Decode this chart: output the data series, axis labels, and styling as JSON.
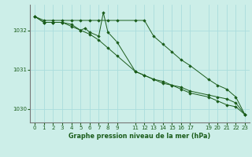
{
  "title": "Graphe pression niveau de la mer (hPa)",
  "bg_color": "#cceee8",
  "grid_color": "#aadddd",
  "line_color": "#1a5c1a",
  "marker_color": "#1a5c1a",
  "x_ticks": [
    0,
    1,
    2,
    3,
    4,
    5,
    6,
    7,
    8,
    9,
    11,
    12,
    13,
    14,
    15,
    16,
    17,
    19,
    20,
    21,
    22,
    23
  ],
  "xlim": [
    -0.5,
    23.5
  ],
  "ylim": [
    1029.65,
    1032.65
  ],
  "yticks": [
    1030,
    1031,
    1032
  ],
  "series1": {
    "x": [
      0,
      1,
      2,
      3,
      4,
      5,
      6,
      7,
      8,
      9,
      11,
      12,
      13,
      14,
      15,
      16,
      17,
      19,
      20,
      21,
      22,
      23
    ],
    "y": [
      1032.35,
      1032.25,
      1032.25,
      1032.25,
      1032.25,
      1032.25,
      1032.25,
      1032.25,
      1032.25,
      1032.25,
      1032.25,
      1032.25,
      1031.85,
      1031.65,
      1031.45,
      1031.25,
      1031.1,
      1030.75,
      1030.6,
      1030.5,
      1030.3,
      1029.85
    ]
  },
  "series2": {
    "x": [
      0,
      1,
      2,
      3,
      4,
      5,
      5.5,
      6,
      7,
      7.5,
      8,
      9,
      11,
      12,
      13,
      14,
      15,
      16,
      17,
      19,
      20,
      21,
      22,
      23
    ],
    "y": [
      1032.35,
      1032.2,
      1032.2,
      1032.2,
      1032.15,
      1032.0,
      1032.05,
      1031.95,
      1031.85,
      1032.45,
      1031.95,
      1031.7,
      1030.95,
      1030.85,
      1030.75,
      1030.7,
      1030.6,
      1030.5,
      1030.4,
      1030.3,
      1030.2,
      1030.1,
      1030.05,
      1029.85
    ]
  },
  "series3": {
    "x": [
      0,
      1,
      2,
      3,
      4,
      5,
      6,
      7,
      8,
      9,
      11,
      12,
      13,
      14,
      15,
      16,
      17,
      19,
      20,
      21,
      22,
      23
    ],
    "y": [
      1032.35,
      1032.2,
      1032.2,
      1032.2,
      1032.1,
      1032.0,
      1031.9,
      1031.75,
      1031.55,
      1031.35,
      1030.95,
      1030.85,
      1030.75,
      1030.65,
      1030.6,
      1030.55,
      1030.45,
      1030.35,
      1030.3,
      1030.25,
      1030.15,
      1029.85
    ]
  }
}
